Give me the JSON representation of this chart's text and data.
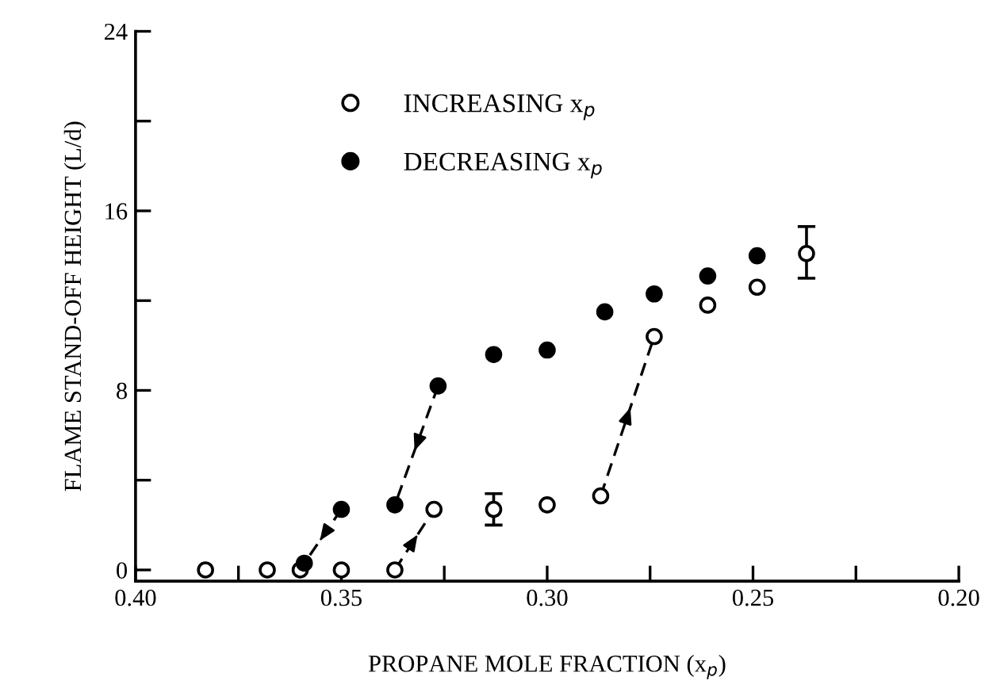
{
  "chart_data": {
    "type": "scatter",
    "xlabel": "PROPANE MOLE FRACTION (x$_{p}$)",
    "ylabel": "FLAME STAND-OFF HEIGHT (L/d)",
    "xlim": [
      0.4,
      0.2
    ],
    "xticks": [
      {
        "value": 0.4,
        "label": "0.40"
      },
      {
        "value": 0.375,
        "label": null
      },
      {
        "value": 0.35,
        "label": "0.35"
      },
      {
        "value": 0.325,
        "label": null
      },
      {
        "value": 0.3,
        "label": "0.30"
      },
      {
        "value": 0.275,
        "label": null
      },
      {
        "value": 0.25,
        "label": "0.25"
      },
      {
        "value": 0.225,
        "label": null
      },
      {
        "value": 0.2,
        "label": "0.20"
      }
    ],
    "ylim": [
      -0.5,
      24
    ],
    "yticks": [
      0,
      {
        "value": 4,
        "label": null
      },
      8,
      {
        "value": 12,
        "label": null
      },
      16,
      {
        "value": 20,
        "label": null
      },
      24
    ],
    "grid": false,
    "legend": "top left",
    "series": [
      {
        "name": "INCREASING x$_{p}$",
        "marker": "circle",
        "color": "#ffffff",
        "x": [
          0.383,
          0.368,
          0.36,
          0.35,
          0.337,
          0.3275,
          0.313,
          0.3,
          0.287,
          0.274,
          0.261,
          0.249,
          0.237
        ],
        "values": [
          0,
          0,
          0,
          0,
          0,
          2.7,
          2.7,
          2.9,
          3.3,
          10.4,
          11.8,
          12.6,
          14.1
        ],
        "errors": [
          null,
          null,
          null,
          null,
          null,
          null,
          [
            2.0,
            3.4
          ],
          null,
          null,
          null,
          null,
          null,
          [
            13.0,
            15.3
          ]
        ]
      },
      {
        "name": "DECREASING x$_{p}$",
        "marker": "circle",
        "color": "#000000",
        "x": [
          0.359,
          0.35,
          0.337,
          0.3265,
          0.313,
          0.3,
          0.286,
          0.274,
          0.261,
          0.249
        ],
        "values": [
          0.3,
          2.7,
          2.9,
          8.2,
          9.6,
          9.8,
          11.5,
          12.3,
          13.1,
          14.0
        ]
      },
      {
        "type": "line",
        "line_style": "dashed",
        "color": "#000000",
        "x": [
          0.35,
          0.359
        ],
        "values": [
          2.7,
          0.3
        ]
      },
      {
        "type": "line",
        "line_style": "dashed",
        "color": "#000000",
        "x": [
          0.3265,
          0.337
        ],
        "values": [
          8.2,
          2.9
        ]
      },
      {
        "type": "line",
        "line_style": "dashed",
        "color": "#000000",
        "x": [
          0.337,
          0.3275
        ],
        "values": [
          0,
          2.7
        ]
      },
      {
        "type": "line",
        "line_style": "dashed",
        "color": "#000000",
        "x": [
          0.287,
          0.274
        ],
        "values": [
          3.3,
          10.4
        ]
      }
    ]
  }
}
